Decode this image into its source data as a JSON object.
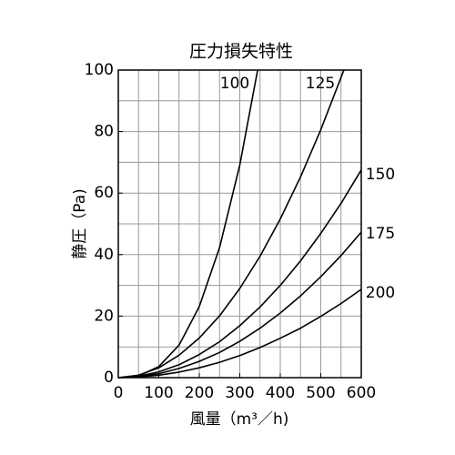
{
  "chart_data": {
    "type": "line",
    "title": "圧力損失特性",
    "x_label": "風量（m³／h)",
    "y_label": "静圧（Pa)",
    "xlim": [
      0,
      600
    ],
    "ylim": [
      0,
      100
    ],
    "xticks": [
      0,
      100,
      200,
      300,
      400,
      500,
      600
    ],
    "yticks": [
      0,
      20,
      40,
      60,
      80,
      100
    ],
    "xgrid": [
      50,
      100,
      150,
      200,
      250,
      300,
      350,
      400,
      450,
      500,
      550
    ],
    "ygrid": [
      10,
      20,
      30,
      40,
      50,
      60,
      70,
      80,
      90
    ],
    "grid": true,
    "series": [
      {
        "name": "100",
        "color": "#000000",
        "x": [
          0,
          50,
          100,
          150,
          200,
          250,
          300,
          344
        ],
        "values": [
          0,
          0.55,
          3.6,
          10.6,
          23.1,
          42.3,
          69.1,
          100
        ]
      },
      {
        "name": "125",
        "color": "#000000",
        "x": [
          0,
          50,
          100,
          150,
          200,
          250,
          300,
          350,
          400,
          450,
          500,
          557
        ],
        "values": [
          0,
          0.81,
          3.2,
          7.3,
          12.9,
          20.1,
          29,
          39.5,
          51.6,
          65.3,
          80.6,
          100
        ]
      },
      {
        "name": "150",
        "color": "#000000",
        "x": [
          0,
          50,
          100,
          150,
          200,
          250,
          300,
          350,
          400,
          450,
          500,
          550,
          600
        ],
        "values": [
          0,
          0.47,
          1.9,
          4.2,
          7.5,
          11.7,
          16.9,
          23,
          30,
          38,
          46.9,
          56.7,
          67.5
        ]
      },
      {
        "name": "175",
        "color": "#000000",
        "x": [
          0,
          50,
          100,
          150,
          200,
          250,
          300,
          350,
          400,
          450,
          500,
          550,
          600
        ],
        "values": [
          0,
          0.33,
          1.3,
          3,
          5.3,
          8.2,
          11.8,
          16.1,
          21,
          26.6,
          32.8,
          39.7,
          47.3
        ]
      },
      {
        "name": "200",
        "color": "#000000",
        "x": [
          0,
          50,
          100,
          150,
          200,
          250,
          300,
          350,
          400,
          450,
          500,
          550,
          600
        ],
        "values": [
          0,
          0.2,
          0.8,
          1.8,
          3.2,
          5,
          7.2,
          9.8,
          12.8,
          16.1,
          19.9,
          24.1,
          28.7
        ]
      }
    ]
  }
}
